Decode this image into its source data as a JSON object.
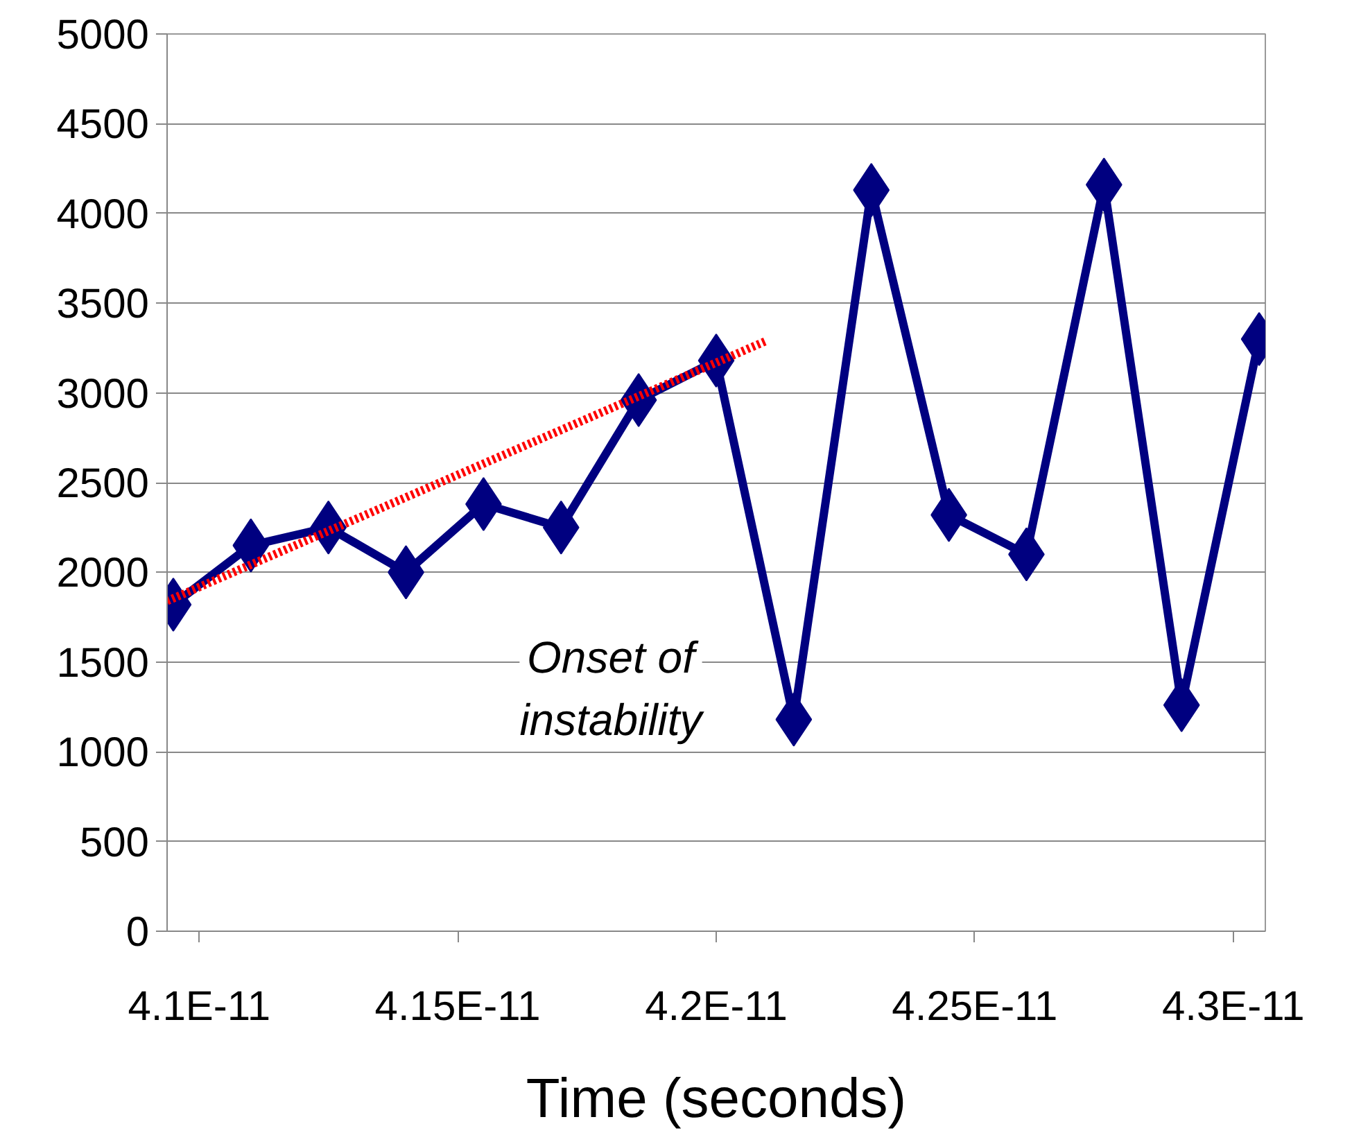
{
  "chart_data": {
    "type": "line",
    "xlabel": "Time (seconds)",
    "xlim": [
      4.0938e-11,
      4.3062e-11
    ],
    "ylim": [
      0,
      5000
    ],
    "xticks": [
      {
        "value": 4.1e-11,
        "label": "4.1E-11"
      },
      {
        "value": 4.15e-11,
        "label": "4.15E-11"
      },
      {
        "value": 4.2e-11,
        "label": "4.2E-11"
      },
      {
        "value": 4.25e-11,
        "label": "4.25E-11"
      },
      {
        "value": 4.3e-11,
        "label": "4.3E-11"
      }
    ],
    "yticks": [
      0,
      500,
      1000,
      1500,
      2000,
      2500,
      3000,
      3500,
      4000,
      4500,
      5000
    ],
    "grid": "y",
    "series": [
      {
        "color": "#000080",
        "marker": "diamond",
        "line_style": "solid",
        "x": [
          4.095e-11,
          4.11e-11,
          4.125e-11,
          4.14e-11,
          4.155e-11,
          4.17e-11,
          4.185e-11,
          4.2e-11,
          4.215e-11,
          4.23e-11,
          4.245e-11,
          4.26e-11,
          4.275e-11,
          4.29e-11,
          4.305e-11
        ],
        "values": [
          1820,
          2150,
          2250,
          2000,
          2380,
          2250,
          2960,
          3180,
          1180,
          4130,
          2320,
          2100,
          4160,
          1260,
          3300
        ]
      },
      {
        "type": "line",
        "color": "#ff0000",
        "marker": "none",
        "line_style": "dotted",
        "x": [
          4.0938e-11,
          4.2097e-11
        ],
        "values": [
          1840,
          3290
        ]
      }
    ],
    "annotations": [
      "Onset of instability"
    ]
  }
}
